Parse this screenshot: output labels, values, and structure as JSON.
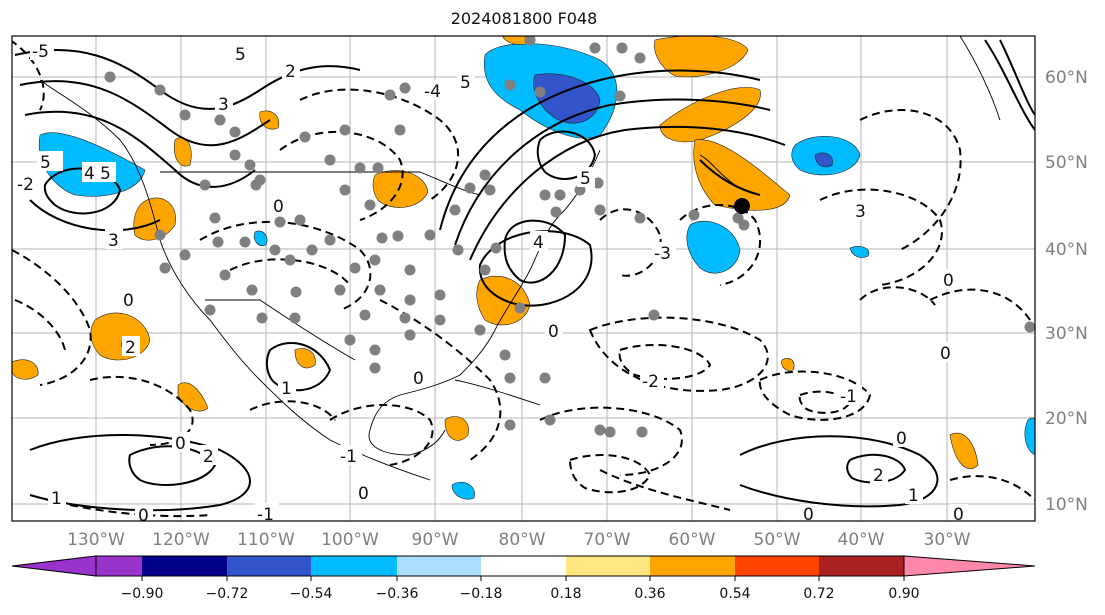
{
  "title": "2024081800 F048",
  "longitude_labels": [
    "130°W",
    "120°W",
    "110°W",
    "100°W",
    "90°W",
    "80°W",
    "70°W",
    "60°W",
    "50°W",
    "40°W",
    "30°W"
  ],
  "latitude_labels": [
    "60°N",
    "50°N",
    "40°N",
    "30°N",
    "20°N",
    "10°N"
  ],
  "contour_labels": [
    "5",
    "4",
    "3",
    "2",
    "1",
    "0",
    "-1",
    "-2",
    "-3",
    "-4",
    "-5"
  ],
  "colorbar": {
    "ticks": [
      "−0.90",
      "−0.72",
      "−0.54",
      "−0.36",
      "−0.18",
      "0.18",
      "0.36",
      "0.54",
      "0.72",
      "0.90"
    ],
    "colors": [
      "#9933cc",
      "#000088",
      "#3355cc",
      "#00bbff",
      "#aaddff",
      "#ffffff",
      "#ffe680",
      "#ffa500",
      "#ff4400",
      "#aa2222",
      "#ff88aa"
    ]
  }
}
